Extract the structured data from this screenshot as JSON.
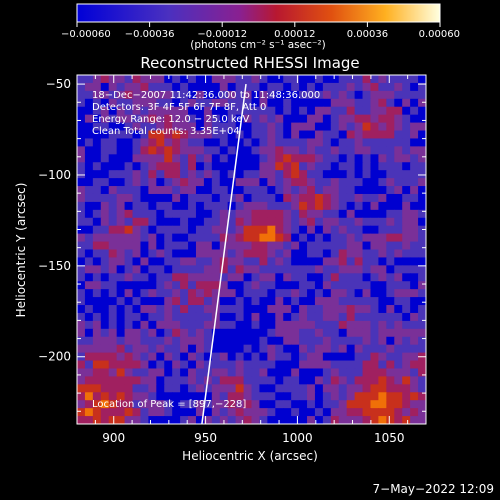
{
  "chart_data": {
    "type": "heatmap",
    "title": "Reconstructed RHESSI Image",
    "xlabel": "Heliocentric X (arcsec)",
    "ylabel": "Heliocentric Y (arcsec)",
    "xlim": [
      880,
      1070
    ],
    "ylim": [
      -237,
      -45
    ],
    "x_ticks": [
      900,
      950,
      1000,
      1050
    ],
    "y_ticks": [
      -50,
      -100,
      -150,
      -200
    ],
    "x_tick_labels": [
      "900",
      "950",
      "1000",
      "1050"
    ],
    "y_tick_labels": [
      "−50",
      "−100",
      "−150",
      "−200"
    ],
    "colorbar": {
      "range": [
        -0.0006,
        0.0006
      ],
      "ticks": [
        -0.0006,
        -0.00036,
        -0.00012,
        0.00012,
        0.00036,
        0.0006
      ],
      "tick_labels": [
        "−0.00060",
        "−0.00036",
        "−0.00012",
        "0.00012",
        "0.00036",
        "0.00060"
      ],
      "unit_label": "(photons cm⁻² s⁻¹ asec⁻²)"
    },
    "annotations": [
      "18−Dec−2007 11:42:36.000 to 11:48:36.000",
      "Detectors: 3F 4F 5F 6F 7F 8F, Att 0",
      "Energy Range: 12.0 − 25.0 keV",
      "Clean    Total counts: 3.35E+04"
    ],
    "peak_label": "Location of Peak = [897,−228]",
    "peak_location": [
      897,
      -228
    ],
    "limb_line": [
      [
        948,
        -237
      ],
      [
        972,
        -50
      ]
    ],
    "colors": {
      "background": "#000000",
      "limb": "#ffffff",
      "colormap": [
        "#0000d0",
        "#4a34b8",
        "#7a3098",
        "#a02060",
        "#c8301c",
        "#f07008",
        "#ffc030",
        "#ffffc8"
      ]
    }
  },
  "footer": {
    "timestamp": "7−May−2022 12:09"
  }
}
